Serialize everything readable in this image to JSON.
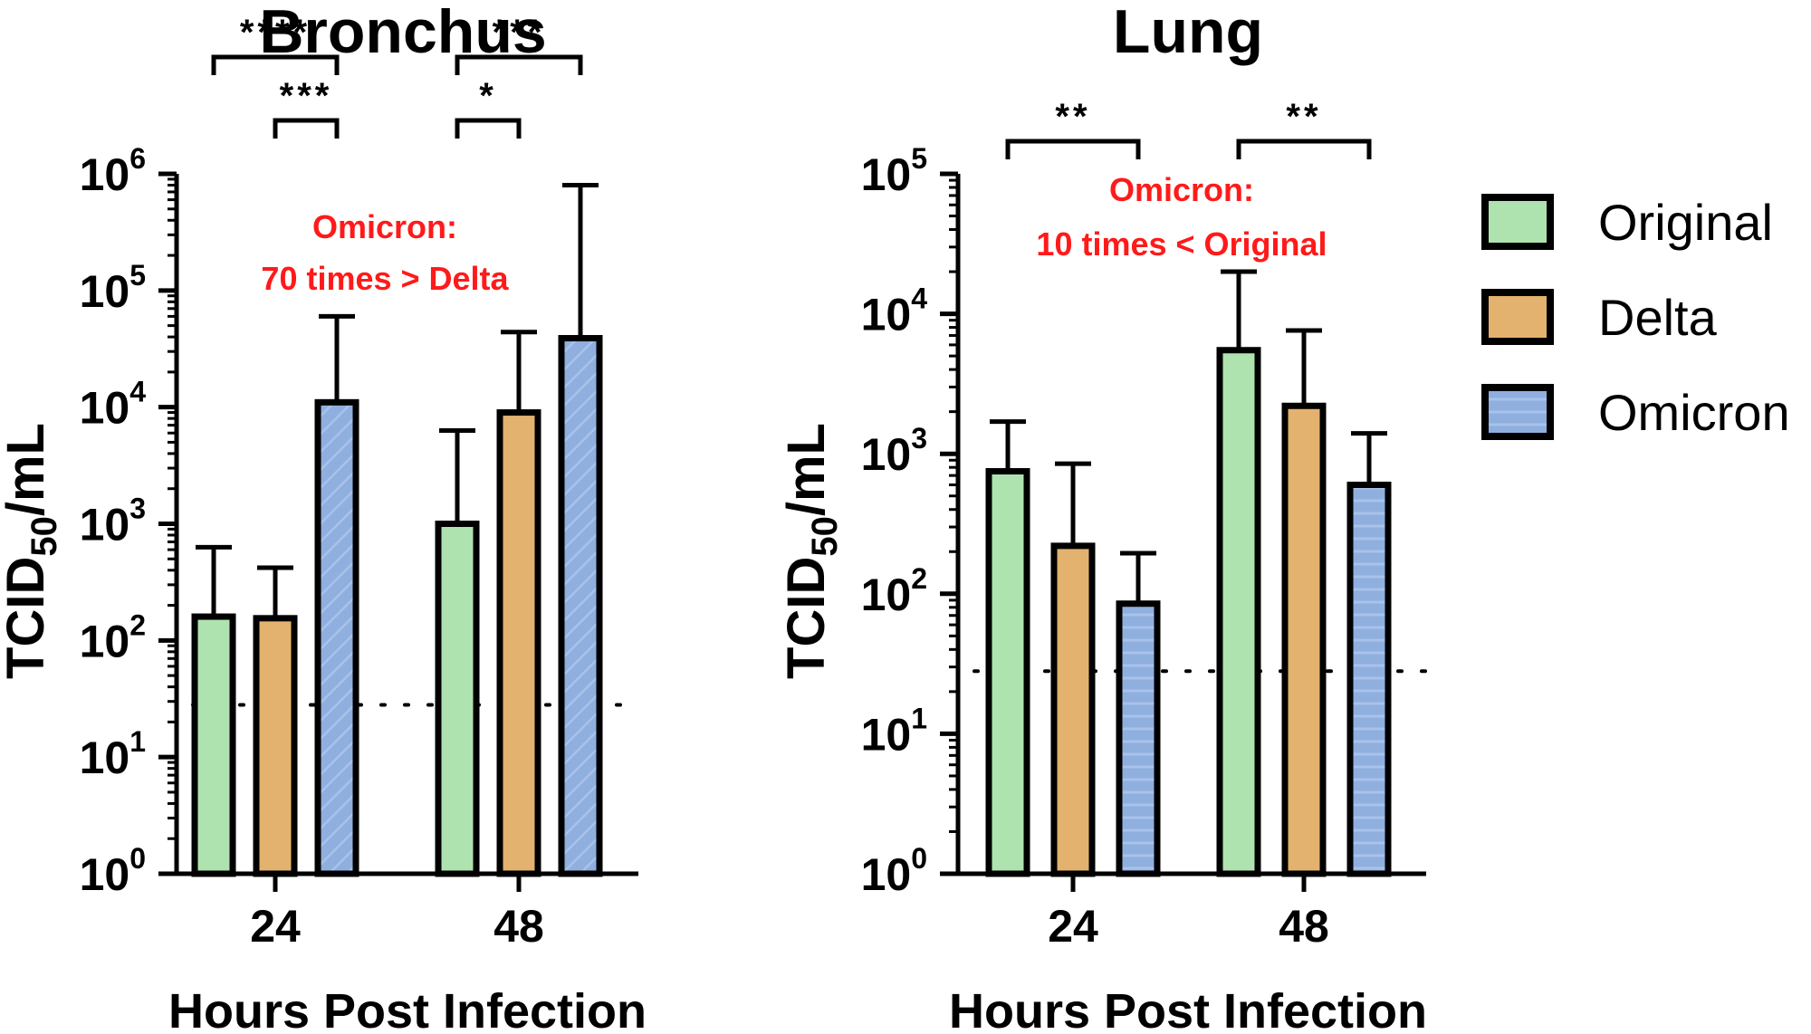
{
  "chart_data": [
    {
      "type": "bar",
      "title": "Bronchus",
      "xlabel": "Hours Post Infection",
      "ylabel_main": "TCID",
      "ylabel_sub": "50",
      "ylabel_unit": "/mL",
      "yscale": "log",
      "ylim": [
        1,
        1000000
      ],
      "ytick_exponents": [
        "0",
        "1",
        "2",
        "3",
        "4",
        "5",
        "6"
      ],
      "categories": [
        "24",
        "48"
      ],
      "series": [
        {
          "name": "Original",
          "values": [
            160,
            1000
          ],
          "error_upper": [
            630,
            6300
          ]
        },
        {
          "name": "Delta",
          "values": [
            155,
            9000
          ],
          "error_upper": [
            420,
            44000
          ]
        },
        {
          "name": "Omicron",
          "values": [
            11000,
            39000
          ],
          "error_upper": [
            60000,
            800000
          ]
        }
      ],
      "detection_limit": 28,
      "significance": [
        {
          "label": "****",
          "group": "24",
          "from": "Original",
          "to": "Omicron",
          "level": 2
        },
        {
          "label": "***",
          "group": "24",
          "from": "Delta",
          "to": "Omicron",
          "level": 1
        },
        {
          "label": "***",
          "group": "48",
          "from": "Original",
          "to": "Omicron",
          "level": 2
        },
        {
          "label": "*",
          "group": "48",
          "from": "Original",
          "to": "Delta",
          "level": 1
        }
      ],
      "annotation": [
        "Omicron:",
        "70 times > Delta"
      ]
    },
    {
      "type": "bar",
      "title": "Lung",
      "xlabel": "Hours Post Infection",
      "ylabel_main": "TCID",
      "ylabel_sub": "50",
      "ylabel_unit": "/mL",
      "yscale": "log",
      "ylim": [
        1,
        100000
      ],
      "ytick_exponents": [
        "0",
        "1",
        "2",
        "3",
        "4",
        "5"
      ],
      "categories": [
        "24",
        "48"
      ],
      "series": [
        {
          "name": "Original",
          "values": [
            750,
            5500
          ],
          "error_upper": [
            1700,
            20000
          ]
        },
        {
          "name": "Delta",
          "values": [
            220,
            2200
          ],
          "error_upper": [
            850,
            7600
          ]
        },
        {
          "name": "Omicron",
          "values": [
            85,
            600
          ],
          "error_upper": [
            195,
            1400
          ]
        }
      ],
      "detection_limit": 28,
      "significance": [
        {
          "label": "**",
          "group": "24",
          "from": "Original",
          "to": "Omicron",
          "level": 1
        },
        {
          "label": "**",
          "group": "48",
          "from": "Original",
          "to": "Omicron",
          "level": 1
        }
      ],
      "annotation": [
        "Omicron:",
        "10 times < Original"
      ]
    }
  ],
  "legend": {
    "placement": "right",
    "entries": [
      {
        "label": "Original",
        "color": "#aee3b0"
      },
      {
        "label": "Delta",
        "color": "#e3b26e"
      },
      {
        "label": "Omicron",
        "color": "#8fafdf"
      }
    ]
  },
  "colors": {
    "Original": "#aee3b0",
    "Delta": "#e3b26e",
    "Omicron": "#8fafdf",
    "annotation": "#ff1a1a"
  }
}
